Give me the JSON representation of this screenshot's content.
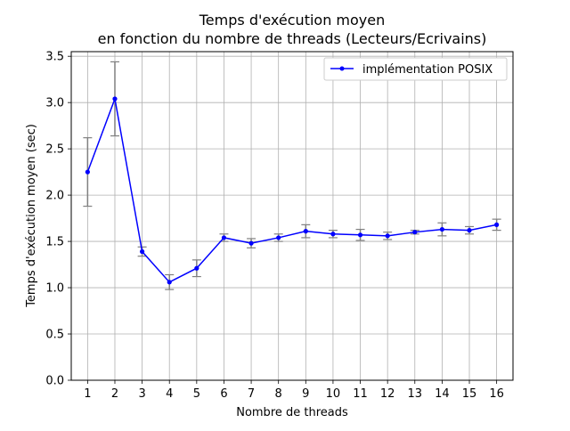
{
  "chart_data": {
    "type": "line",
    "title": [
      "Temps d'exécution moyen",
      "en fonction du nombre de threads (Lecteurs/Ecrivains)"
    ],
    "xlabel": "Nombre de threads",
    "ylabel": "Temps d'exécution moyen (sec)",
    "ylim": [
      0,
      3.55
    ],
    "xlim": [
      0.4,
      16.6
    ],
    "grid": true,
    "legend_position": "top-right",
    "x_ticks": [
      "1",
      "2",
      "3",
      "4",
      "5",
      "6",
      "7",
      "8",
      "9",
      "10",
      "11",
      "12",
      "13",
      "14",
      "15",
      "16"
    ],
    "y_ticks": [
      "0.0",
      "0.5",
      "1.0",
      "1.5",
      "2.0",
      "2.5",
      "3.0",
      "3.5"
    ],
    "colors": {
      "line": "#0000ff",
      "errorbar": "#808080",
      "grid": "#b0b0b0"
    },
    "series": [
      {
        "name": "implémentation POSIX",
        "x": [
          1,
          2,
          3,
          4,
          5,
          6,
          7,
          8,
          9,
          10,
          11,
          12,
          13,
          14,
          15,
          16
        ],
        "y": [
          2.25,
          3.04,
          1.39,
          1.06,
          1.21,
          1.54,
          1.48,
          1.54,
          1.61,
          1.58,
          1.57,
          1.56,
          1.6,
          1.63,
          1.62,
          1.68
        ],
        "error": [
          0.37,
          0.4,
          0.05,
          0.08,
          0.09,
          0.04,
          0.05,
          0.04,
          0.07,
          0.04,
          0.06,
          0.04,
          0.02,
          0.07,
          0.04,
          0.06
        ]
      }
    ]
  }
}
